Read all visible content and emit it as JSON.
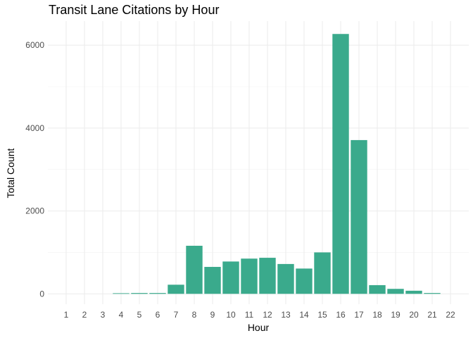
{
  "chart_data": {
    "type": "bar",
    "title": "Transit Lane Citations by Hour",
    "xlabel": "Hour",
    "ylabel": "Total Count",
    "categories": [
      "1",
      "2",
      "3",
      "4",
      "5",
      "6",
      "7",
      "8",
      "9",
      "10",
      "11",
      "12",
      "13",
      "14",
      "15",
      "16",
      "17",
      "18",
      "19",
      "20",
      "21",
      "22"
    ],
    "values": [
      0,
      0,
      0,
      15,
      20,
      20,
      220,
      1160,
      650,
      780,
      850,
      870,
      720,
      610,
      1000,
      6270,
      3710,
      210,
      120,
      75,
      20,
      0
    ],
    "yticks": [
      0,
      2000,
      4000,
      6000
    ],
    "ylim": [
      -250,
      6580
    ],
    "grid": true,
    "legend": "none",
    "bar_color": "#3aaa8c"
  }
}
